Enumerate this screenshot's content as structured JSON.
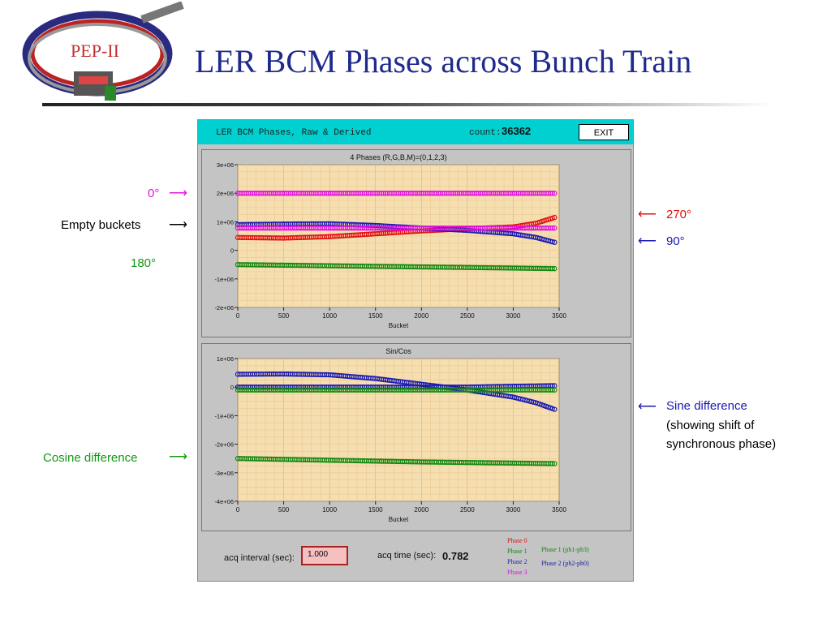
{
  "slide": {
    "title": "LER BCM Phases across Bunch Train",
    "logo_text": "PEP-II"
  },
  "app": {
    "header_title": "LER BCM Phases, Raw & Derived",
    "count_label": "count:",
    "count_value": "36362",
    "exit_label": "EXIT",
    "acq_interval_label": "acq interval (sec):",
    "acq_interval_value": "1.000",
    "acq_time_label": "acq time (sec):",
    "acq_time_value": "0.782",
    "legend": {
      "col1": [
        {
          "label": "Phase 0",
          "color": "#e01010"
        },
        {
          "label": "Phase 1",
          "color": "#118811"
        },
        {
          "label": "Phase 2",
          "color": "#1a1ab0"
        },
        {
          "label": "Phase 3",
          "color": "#e010e0"
        }
      ],
      "col2": [
        {
          "label": "Phase 1 (ph1-ph3)",
          "color": "#118811"
        },
        {
          "label": "Phase 2 (ph2-ph0)",
          "color": "#1a1ab0"
        }
      ]
    }
  },
  "annotations": {
    "zero_deg": {
      "text": "0°",
      "color": "#e010e0"
    },
    "empty_buckets": {
      "text": "Empty buckets",
      "color": "#000000"
    },
    "one_eighty": {
      "text": "180°",
      "color": "#119911"
    },
    "two_seventy": {
      "text": "270°",
      "color": "#dd1111"
    },
    "ninety": {
      "text": "90°",
      "color": "#1a1ab0"
    },
    "sine_diff": {
      "line1": "Sine difference",
      "line2": "(showing shift of",
      "line3": "synchronous phase)",
      "color": "#1a1ab0"
    },
    "cos_diff": {
      "text": "Cosine difference",
      "color": "#119911"
    }
  },
  "chart_data": [
    {
      "type": "scatter",
      "title": "4 Phases (R,G,B,M)=(0,1,2,3)",
      "xlabel": "Bucket",
      "ylabel": "",
      "xlim": [
        0,
        3500
      ],
      "ylim": [
        -2000000,
        3000000
      ],
      "xticks": [
        "0",
        "500",
        "1000",
        "1500",
        "2000",
        "2500",
        "3000",
        "3500"
      ],
      "yticks": [
        "3e+06",
        "2e+06",
        "1e+06",
        "0",
        "-1e+06",
        "-2e+06"
      ],
      "ytick_values": [
        3000000,
        2000000,
        1000000,
        0,
        -1000000,
        -2000000
      ],
      "grid": true,
      "series": [
        {
          "color": "#e010e0",
          "x": [
            0,
            500,
            1000,
            1500,
            2000,
            2500,
            3000,
            3450
          ],
          "y": [
            2000000,
            2000000,
            2000000,
            2000000,
            2000000,
            2000000,
            2000000,
            2000000
          ]
        },
        {
          "color": "#e01010",
          "x": [
            0,
            500,
            1000,
            1500,
            2000,
            2500,
            3000,
            3250,
            3450
          ],
          "y": [
            450000,
            430000,
            480000,
            580000,
            680000,
            760000,
            820000,
            950000,
            1150000
          ]
        },
        {
          "color": "#1a1ab0",
          "x": [
            0,
            500,
            1000,
            1500,
            2000,
            2500,
            3000,
            3250,
            3450
          ],
          "y": [
            900000,
            920000,
            930000,
            870000,
            780000,
            700000,
            580000,
            450000,
            280000
          ]
        },
        {
          "color": "#e010e0",
          "x": [
            0,
            500,
            1000,
            1500,
            2000,
            2500,
            3000,
            3450
          ],
          "y": [
            780000,
            780000,
            780000,
            780000,
            780000,
            780000,
            780000,
            780000
          ]
        },
        {
          "color": "#118811",
          "x": [
            0,
            500,
            1000,
            1500,
            2000,
            2500,
            3000,
            3450
          ],
          "y": [
            -500000,
            -520000,
            -540000,
            -560000,
            -580000,
            -600000,
            -620000,
            -640000
          ]
        }
      ]
    },
    {
      "type": "scatter",
      "title": "Sin/Cos",
      "xlabel": "Bucket",
      "ylabel": "",
      "xlim": [
        0,
        3500
      ],
      "ylim": [
        -4000000,
        1000000
      ],
      "xticks": [
        "0",
        "500",
        "1000",
        "1500",
        "2000",
        "2500",
        "3000",
        "3500"
      ],
      "yticks": [
        "1e+06",
        "0",
        "-1e+06",
        "-2e+06",
        "-3e+06",
        "-4e+06"
      ],
      "ytick_values": [
        1000000,
        0,
        -1000000,
        -2000000,
        -3000000,
        -4000000
      ],
      "grid": true,
      "series": [
        {
          "color": "#1a1ab0",
          "x": [
            0,
            500,
            1000,
            1500,
            2000,
            2500,
            3000,
            3250,
            3450
          ],
          "y": [
            450000,
            460000,
            430000,
            300000,
            100000,
            -100000,
            -350000,
            -550000,
            -780000
          ]
        },
        {
          "color": "#1a1ab0",
          "x": [
            0,
            500,
            1000,
            1500,
            2000,
            2500,
            3000,
            3450
          ],
          "y": [
            0,
            0,
            0,
            0,
            0,
            0,
            30000,
            50000
          ]
        },
        {
          "color": "#118811",
          "x": [
            0,
            500,
            1000,
            1500,
            2000,
            2500,
            3000,
            3450
          ],
          "y": [
            -100000,
            -100000,
            -100000,
            -100000,
            -100000,
            -100000,
            -100000,
            -100000
          ]
        },
        {
          "color": "#118811",
          "x": [
            0,
            500,
            1000,
            1500,
            2000,
            2500,
            3000,
            3450
          ],
          "y": [
            -2500000,
            -2530000,
            -2560000,
            -2590000,
            -2620000,
            -2640000,
            -2660000,
            -2680000
          ]
        }
      ]
    }
  ]
}
